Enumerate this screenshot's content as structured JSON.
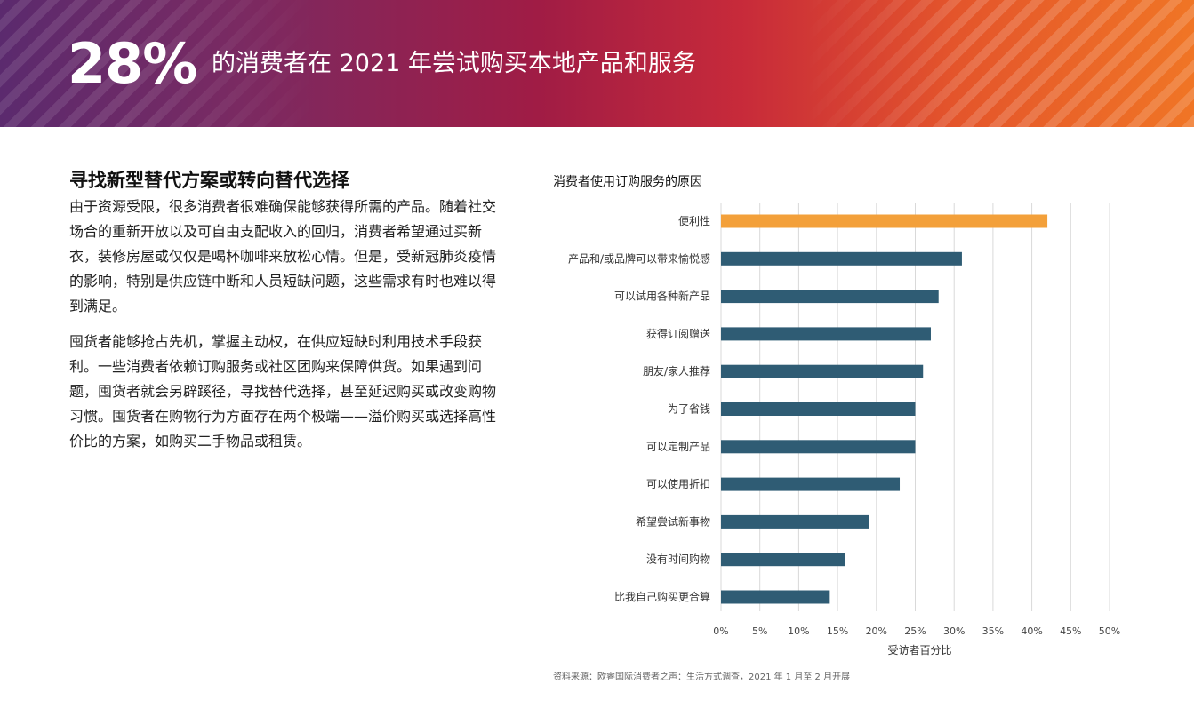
{
  "banner": {
    "big_stat": "28%",
    "title": "的消费者在 2021 年尝试购买本地产品和服务"
  },
  "section": {
    "title": "寻找新型替代方案或转向替代选择",
    "paragraph1": "由于资源受限，很多消费者很难确保能够获得所需的产品。随着社交场合的重新开放以及可自由支配收入的回归，消费者希望通过买新衣，装修房屋或仅仅是喝杯咖啡来放松心情。但是，受新冠肺炎疫情的影响，特别是供应链中断和人员短缺问题，这些需求有时也难以得到满足。",
    "paragraph2": "囤货者能够抢占先机，掌握主动权，在供应短缺时利用技术手段获利。一些消费者依赖订购服务或社区团购来保障供货。如果遇到问题，囤货者就会另辟蹊径，寻找替代选择，甚至延迟购买或改变购物习惯。囤货者在购物行为方面存在两个极端——溢价购买或选择高性价比的方案，如购买二手物品或租赁。"
  },
  "chart_data": {
    "type": "bar",
    "orientation": "horizontal",
    "title": "消费者使用订购服务的原因",
    "xlabel": "受访者百分比",
    "ylabel": "",
    "categories": [
      "便利性",
      "产品和/或品牌可以带来愉悦感",
      "可以试用各种新产品",
      "获得订阅赠送",
      "朋友/家人推荐",
      "为了省钱",
      "可以定制产品",
      "可以使用折扣",
      "希望尝试新事物",
      "没有时间购物",
      "比我自己购买更合算"
    ],
    "values": [
      42,
      31,
      28,
      27,
      26,
      25,
      25,
      23,
      19,
      16,
      14
    ],
    "xlim": [
      0,
      50
    ],
    "ticks": [
      "0%",
      "5%",
      "10%",
      "15%",
      "20%",
      "25%",
      "30%",
      "35%",
      "40%",
      "45%",
      "50%"
    ],
    "grid": true,
    "colors": {
      "highlight": "#f3a03a",
      "default": "#2f5c74",
      "grid": "#d9d9d9"
    }
  },
  "source": "资料来源：欧睿国际消费者之声：生活方式调查，2021 年 1 月至 2 月开展"
}
